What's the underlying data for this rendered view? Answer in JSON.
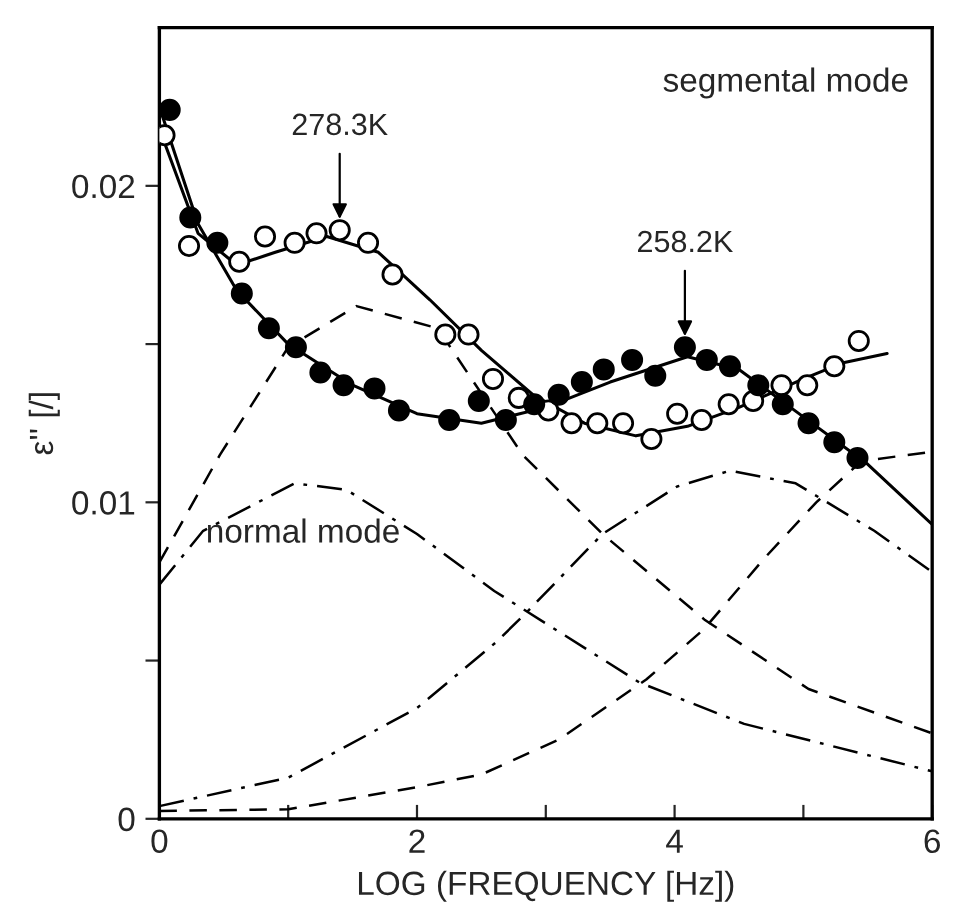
{
  "chart_data": {
    "type": "scatter",
    "xlabel": "LOG (FREQUENCY [Hz])",
    "ylabel": "ε'' [/]",
    "xlim": [
      0,
      6
    ],
    "ylim": [
      0,
      0.025
    ],
    "xticks": [
      0,
      {
        "value": 1,
        "label": null
      },
      2,
      {
        "value": 3,
        "label": null
      },
      4,
      {
        "value": 5,
        "label": null
      },
      6
    ],
    "yticks": [
      0,
      {
        "value": 0.005,
        "label": null
      },
      0.01,
      {
        "value": 0.015,
        "label": null
      },
      0.02
    ],
    "grid": false,
    "legend": false,
    "annotations": [
      {
        "text": "278.3K",
        "x": 1.4,
        "y": 0.0186
      },
      {
        "text": "258.2K",
        "x": 4.08,
        "y": 0.0149
      },
      "segmental mode",
      "normal mode"
    ],
    "series": [
      {
        "marker": "circle",
        "color": "#ffffff",
        "x": [
          0.04,
          0.23,
          0.62,
          0.82,
          1.05,
          1.22,
          1.4,
          1.62,
          1.81,
          2.22,
          2.4,
          2.59,
          2.79,
          3.02,
          3.2,
          3.4,
          3.6,
          3.82,
          4.02,
          4.21,
          4.42,
          4.61,
          4.83,
          5.03,
          5.24,
          5.43
        ],
        "values": [
          0.0216,
          0.0181,
          0.0176,
          0.0184,
          0.0182,
          0.0185,
          0.0186,
          0.0182,
          0.0172,
          0.0153,
          0.0153,
          0.0139,
          0.0133,
          0.0129,
          0.0125,
          0.0125,
          0.0125,
          0.012,
          0.0128,
          0.0126,
          0.0131,
          0.0132,
          0.0137,
          0.0137,
          0.0143,
          0.0151
        ]
      },
      {
        "marker": "circle",
        "color": "#000000",
        "x": [
          0.08,
          0.24,
          0.45,
          0.64,
          0.85,
          1.06,
          1.25,
          1.43,
          1.67,
          1.86,
          2.25,
          2.48,
          2.69,
          2.91,
          3.1,
          3.28,
          3.45,
          3.67,
          3.85,
          4.08,
          4.25,
          4.43,
          4.65,
          4.84,
          5.04,
          5.24,
          5.42
        ],
        "values": [
          0.0224,
          0.019,
          0.0182,
          0.0166,
          0.0155,
          0.0149,
          0.0141,
          0.0137,
          0.0136,
          0.0129,
          0.0126,
          0.0132,
          0.0126,
          0.0131,
          0.0134,
          0.0138,
          0.0142,
          0.0145,
          0.014,
          0.0149,
          0.0145,
          0.0143,
          0.0137,
          0.0131,
          0.0125,
          0.0119,
          0.0114
        ]
      },
      {
        "type": "line",
        "line_style": "solid",
        "color": "#000000",
        "x": [
          0,
          0.3,
          0.6,
          0.9,
          1.3,
          1.7,
          2.1,
          2.5,
          2.9,
          3.3,
          3.7,
          4.1,
          4.5,
          5.0,
          5.3,
          5.65
        ],
        "values": [
          0.0218,
          0.0185,
          0.0175,
          0.0179,
          0.0184,
          0.0179,
          0.0164,
          0.0148,
          0.0134,
          0.0125,
          0.0121,
          0.0124,
          0.013,
          0.0139,
          0.0144,
          0.0147
        ]
      },
      {
        "type": "line",
        "line_style": "solid",
        "color": "#000000",
        "x": [
          0,
          0.3,
          0.6,
          1.0,
          1.5,
          2.0,
          2.5,
          3.0,
          3.5,
          4.1,
          4.5,
          5.0,
          5.5,
          6.0
        ],
        "values": [
          0.0225,
          0.0188,
          0.0167,
          0.015,
          0.0137,
          0.0128,
          0.0125,
          0.013,
          0.0138,
          0.0146,
          0.0142,
          0.0127,
          0.0112,
          0.0093
        ]
      },
      {
        "type": "line",
        "line_style": "dashed",
        "color": "#000000",
        "x": [
          0,
          0.47,
          1.0,
          1.53,
          2.16,
          2.82,
          3.44,
          4.23,
          5.04,
          6.0
        ],
        "values": [
          0.0081,
          0.0115,
          0.0149,
          0.0162,
          0.0155,
          0.0115,
          0.009,
          0.0063,
          0.0041,
          0.0027
        ]
      },
      {
        "type": "line",
        "line_style": "dashed",
        "color": "#000000",
        "x": [
          0,
          1.0,
          2.0,
          2.5,
          3.1,
          3.78,
          4.23,
          4.69,
          5.1,
          5.45,
          6.0
        ],
        "values": [
          0.00025,
          0.0003,
          0.001,
          0.0014,
          0.0025,
          0.0044,
          0.006,
          0.0082,
          0.01,
          0.0113,
          0.0116
        ]
      },
      {
        "type": "line",
        "line_style": "dashdot",
        "color": "#000000",
        "x": [
          0,
          0.34,
          1.05,
          1.45,
          2.0,
          2.6,
          3.73,
          4.54,
          6.0
        ],
        "values": [
          0.0074,
          0.0091,
          0.0106,
          0.0104,
          0.009,
          0.0072,
          0.0043,
          0.003,
          0.0015
        ]
      },
      {
        "type": "line",
        "line_style": "dashdot",
        "color": "#000000",
        "x": [
          0,
          1.0,
          2.0,
          2.62,
          2.87,
          3.44,
          4.02,
          4.43,
          4.94,
          5.55,
          6.0
        ],
        "values": [
          0.0004,
          0.0013,
          0.0035,
          0.0056,
          0.0066,
          0.009,
          0.0105,
          0.011,
          0.0106,
          0.0091,
          0.0078
        ]
      }
    ]
  }
}
